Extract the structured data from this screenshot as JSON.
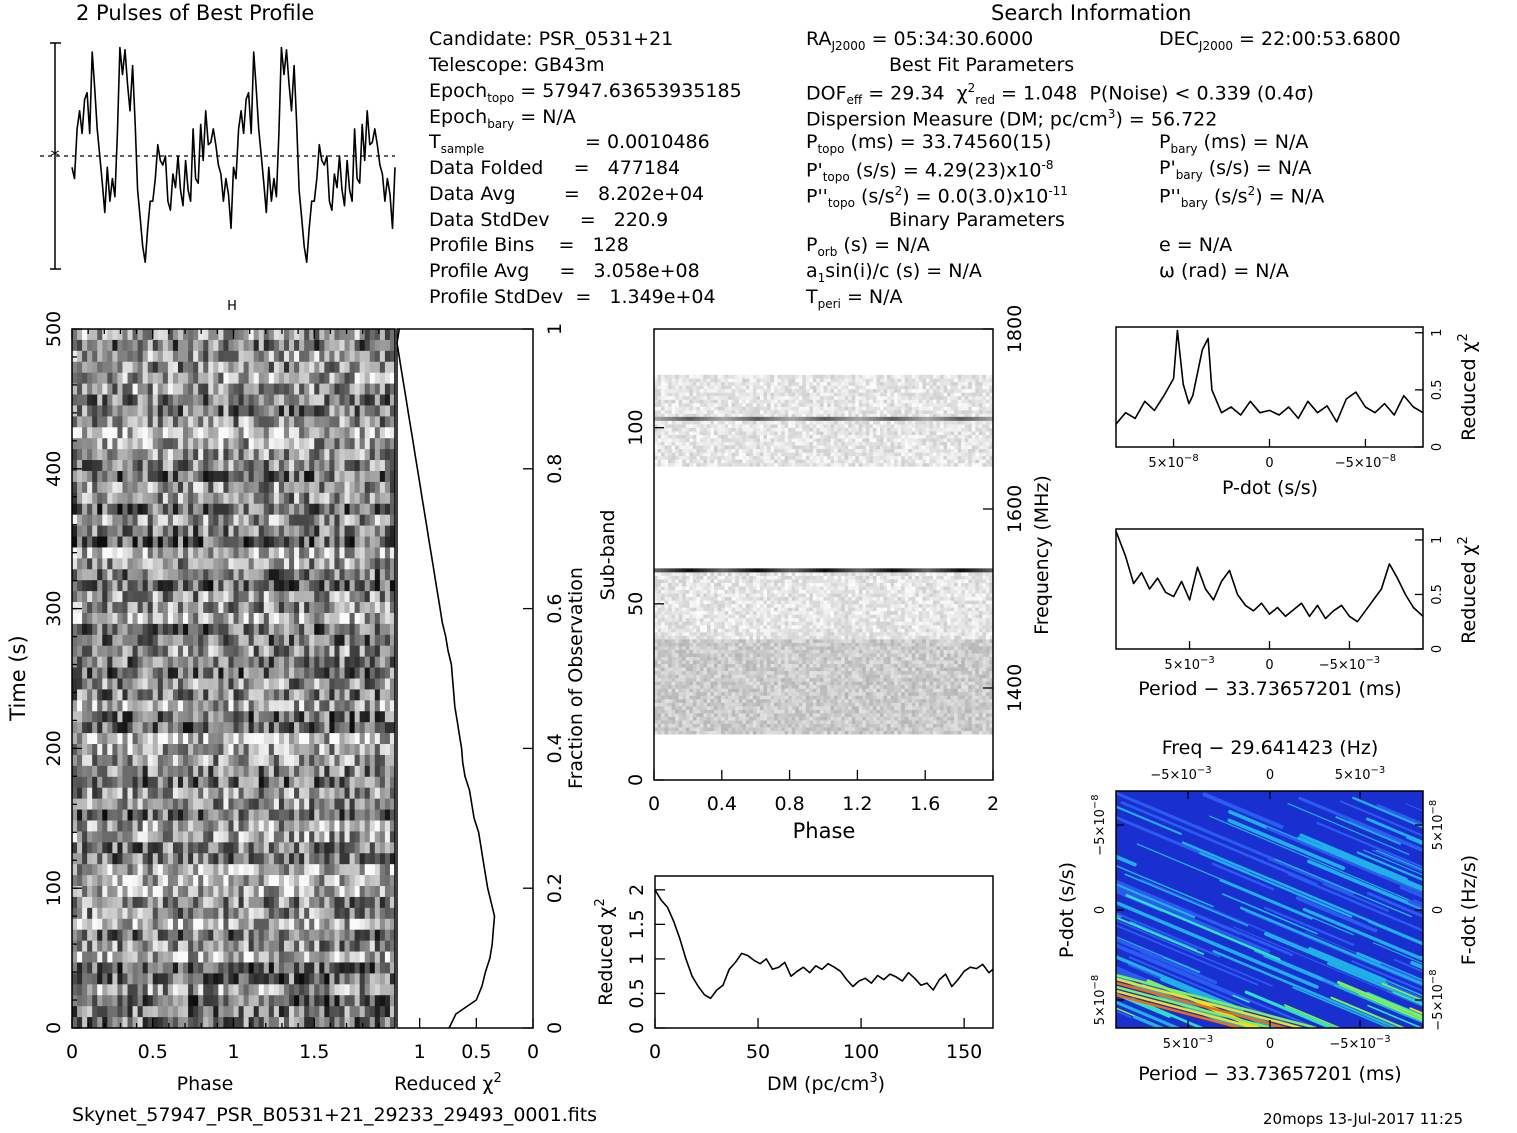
{
  "header": {
    "profile_title": "2 Pulses of Best Profile",
    "search_title": "Search Information",
    "candidate": "Candidate:  PSR_0531+21",
    "telescope": "Telescope:  GB43m",
    "epoch_topo": "Epoch",
    "epoch_topo_sub": "topo",
    "epoch_topo_val": "= 57947.63653935185",
    "epoch_bary": "Epoch",
    "epoch_bary_sub": "bary",
    "epoch_bary_val": "= N/A",
    "tsample": "T",
    "tsample_sub": "sample",
    "tsample_val": "=   0.0010486",
    "data_folded": "Data Folded     =   477184",
    "data_avg": "Data Avg        =   8.202e+04",
    "data_stddev": "Data StdDev     =   220.9",
    "profile_bins": "Profile Bins    =   128",
    "profile_avg": "Profile Avg     =   3.058e+08",
    "profile_stddev": "Profile StdDev  =   1.349e+04"
  },
  "search": {
    "ra": "RA",
    "ra_sub": "J2000",
    "ra_val": "= 05:34:30.6000",
    "dec": "DEC",
    "dec_sub": "J2000",
    "dec_val": "= 22:00:53.6800",
    "best_fit": "Best Fit Parameters",
    "dof": "DOF",
    "dof_sub": "eff",
    "dof_val": "= 29.34",
    "chi": "χ",
    "chi_sup": "2",
    "chi_sub": "red",
    "chi_val": "= 1.048",
    "pnoise": "P(Noise) < 0.339   (0.4σ)",
    "dm_line": "Dispersion Measure (DM; pc/cm",
    "dm_sup": "3",
    "dm_val": ") = 56.722",
    "ptopo": "P",
    "ptopo_sub": "topo",
    "ptopo_val": "(ms) =  33.74560(15)",
    "pbary": "P",
    "pbary_sub": "bary",
    "pbary_val": "(ms) = N/A",
    "pdtopo": "P'",
    "pdtopo_sub": "topo",
    "pdtopo_val": "(s/s) =  4.29(23)x10",
    "pdtopo_exp": "-8",
    "pdbary": "P'",
    "pdbary_sub": "bary",
    "pdbary_val": "(s/s) = N/A",
    "pddtopo": "P''",
    "pddtopo_sub": "topo",
    "pddtopo_val": "(s/s",
    "pddtopo_sup": "2",
    "pddtopo_val2": ") = 0.0(3.0)x10",
    "pddtopo_exp": "-11",
    "pddbary": "P''",
    "pddbary_sub": "bary",
    "pddbary_val": "(s/s",
    "pddbary_sup": "2",
    "pddbary_val2": ") = N/A",
    "binary": "Binary Parameters",
    "porb": "P",
    "porb_sub": "orb",
    "porb_val": "(s) = N/A",
    "ecc": "e = N/A",
    "a1": "a",
    "a1_sub": "1",
    "a1_val": "sin(i)/c (s) = N/A",
    "omega": "ω (rad) = N/A",
    "tperi": "T",
    "tperi_sub": "peri",
    "tperi_val": "= N/A"
  },
  "footer": {
    "filename": "Skynet_57947_PSR_B0531+21_29233_29493_0001.fits",
    "stamp": "20mops 13-Jul-2017 11:25"
  },
  "chart_data": [
    {
      "id": "pulse_profile",
      "type": "line",
      "title": "2 Pulses of Best Profile",
      "x": [
        0,
        0.0156,
        0.0313,
        0.0469,
        0.0625,
        0.0781,
        0.0938,
        0.1094,
        0.125,
        0.1406,
        0.1563,
        0.1719,
        0.1875,
        0.2031,
        0.2188,
        0.2344,
        0.25,
        0.2656,
        0.2813,
        0.2969,
        0.3125,
        0.3281,
        0.3438,
        0.3594,
        0.375,
        0.3906,
        0.4063,
        0.4219,
        0.4375,
        0.4531,
        0.4688,
        0.4844,
        0.5,
        0.5156,
        0.5313,
        0.5469,
        0.5625,
        0.5781,
        0.5938,
        0.6094,
        0.625,
        0.6406,
        0.6563,
        0.6719,
        0.6875,
        0.7031,
        0.7188,
        0.7344,
        0.75,
        0.7656,
        0.7813,
        0.7969,
        0.8125,
        0.8281,
        0.8438,
        0.8594,
        0.875,
        0.8906,
        0.9063,
        0.9219,
        0.9375,
        0.9531,
        0.9688,
        0.9844,
        1.0
      ],
      "values": [
        0.45,
        0.4,
        0.62,
        0.7,
        0.6,
        0.75,
        0.78,
        0.6,
        0.96,
        0.8,
        0.62,
        0.5,
        0.38,
        0.25,
        0.45,
        0.3,
        0.4,
        0.32,
        0.6,
        0.98,
        0.86,
        0.97,
        0.82,
        0.7,
        0.9,
        0.65,
        0.35,
        0.23,
        0.1,
        0.03,
        0.18,
        0.3,
        0.3,
        0.4,
        0.55,
        0.48,
        0.46,
        0.5,
        0.3,
        0.26,
        0.42,
        0.36,
        0.5,
        0.35,
        0.28,
        0.48,
        0.35,
        0.3,
        0.62,
        0.4,
        0.38,
        0.64,
        0.48,
        0.7,
        0.55,
        0.56,
        0.62,
        0.55,
        0.46,
        0.42,
        0.3,
        0.4,
        0.33,
        0.18,
        0.45
      ]
    },
    {
      "id": "time_phase",
      "type": "heatmap",
      "xlabel": "Phase",
      "ylabel": "Time (s)",
      "xlim": [
        0,
        2
      ],
      "ylim": [
        0,
        500
      ],
      "x_ticks": [
        "0",
        "0.5",
        "1",
        "1.5"
      ],
      "y_ticks": [
        "0",
        "100",
        "200",
        "300",
        "400",
        "500"
      ],
      "rows": 64,
      "cols": 64
    },
    {
      "id": "chi_vs_time",
      "type": "line",
      "xlabel": "Reduced χ",
      "xlabel_sup": "2",
      "ylabel": "Fraction of Observation",
      "x_ticks": [
        "1",
        "0.5",
        "0"
      ],
      "y_ticks": [
        "0",
        "0.2",
        "0.4",
        "0.6",
        "0.8",
        "1"
      ],
      "xlim": [
        1.2,
        0
      ],
      "ylim": [
        0,
        1
      ],
      "x": [
        0.74,
        0.68,
        0.5,
        0.45,
        0.42,
        0.38,
        0.36,
        0.35,
        0.34,
        0.37,
        0.4,
        0.42,
        0.44,
        0.46,
        0.48,
        0.52,
        0.54,
        0.56,
        0.6,
        0.62,
        0.63,
        0.65,
        0.67,
        0.69,
        0.7,
        0.71,
        0.72,
        0.75,
        0.77,
        0.8,
        0.82,
        0.84,
        0.86,
        0.88,
        0.9,
        0.92,
        0.94,
        0.96,
        0.98,
        1.0,
        1.02,
        1.04,
        1.06,
        1.08,
        1.1,
        1.12,
        1.14,
        1.16,
        1.18,
        1.2,
        1.18
      ],
      "y": [
        0.0,
        0.02,
        0.04,
        0.06,
        0.08,
        0.1,
        0.12,
        0.14,
        0.16,
        0.18,
        0.2,
        0.22,
        0.24,
        0.26,
        0.28,
        0.3,
        0.32,
        0.34,
        0.36,
        0.38,
        0.4,
        0.42,
        0.44,
        0.46,
        0.48,
        0.5,
        0.52,
        0.54,
        0.56,
        0.58,
        0.6,
        0.62,
        0.64,
        0.66,
        0.68,
        0.7,
        0.72,
        0.74,
        0.76,
        0.78,
        0.8,
        0.82,
        0.84,
        0.86,
        0.88,
        0.9,
        0.92,
        0.94,
        0.96,
        0.98,
        1.0
      ]
    },
    {
      "id": "subband_phase",
      "type": "heatmap",
      "xlabel": "Phase",
      "ylabel": "Sub-band",
      "ylabel_right": "Frequency (MHz)",
      "xlim": [
        0,
        2
      ],
      "ylim": [
        0,
        128
      ],
      "x_ticks": [
        "0",
        "0.4",
        "0.8",
        "1.2",
        "1.6",
        "2"
      ],
      "y_ticks": [
        "0",
        "50",
        "100"
      ],
      "y_right_ticks": [
        "1400",
        "1600",
        "1800"
      ],
      "bright_bands": [
        59.5,
        102.5
      ],
      "occupied_ranges": [
        [
          13,
          60
        ],
        [
          89,
          115
        ]
      ]
    },
    {
      "id": "chi_vs_dm",
      "type": "line",
      "xlabel": "DM (pc/cm",
      "xlabel_sup": "3",
      "xlabel_end": ")",
      "ylabel": "Reduced χ",
      "ylabel_sup": "2",
      "xlim": [
        0,
        164
      ],
      "ylim": [
        0,
        2.2
      ],
      "x_ticks": [
        "0",
        "50",
        "100",
        "150"
      ],
      "y_ticks": [
        "0",
        "0.5",
        "1",
        "1.5",
        "2"
      ],
      "x": [
        0,
        3,
        6,
        9,
        12,
        15,
        18,
        21,
        24,
        27,
        30,
        33,
        36,
        39,
        42,
        45,
        48,
        51,
        54,
        57,
        60,
        63,
        66,
        69,
        72,
        75,
        78,
        81,
        84,
        87,
        90,
        93,
        96,
        99,
        102,
        105,
        108,
        111,
        114,
        117,
        120,
        123,
        126,
        129,
        132,
        135,
        138,
        141,
        144,
        147,
        150,
        153,
        156,
        159,
        162,
        164
      ],
      "values": [
        2.0,
        1.85,
        1.75,
        1.55,
        1.3,
        1.0,
        0.75,
        0.6,
        0.48,
        0.43,
        0.55,
        0.62,
        0.85,
        0.95,
        1.08,
        1.05,
        0.98,
        0.93,
        1.0,
        0.85,
        0.88,
        0.95,
        0.75,
        0.82,
        0.88,
        0.8,
        0.9,
        0.85,
        0.93,
        0.88,
        0.82,
        0.7,
        0.6,
        0.68,
        0.72,
        0.65,
        0.76,
        0.7,
        0.78,
        0.74,
        0.68,
        0.8,
        0.72,
        0.62,
        0.65,
        0.55,
        0.7,
        0.78,
        0.6,
        0.7,
        0.82,
        0.88,
        0.86,
        0.92,
        0.8,
        0.85
      ]
    },
    {
      "id": "chi_vs_pdot",
      "type": "line",
      "xlabel": "P-dot (s/s)",
      "ylabel": "Reduced χ",
      "ylabel_sup": "2",
      "xlim": [
        8e-08,
        -8e-08
      ],
      "ylim": [
        0,
        1.05
      ],
      "x_ticks_mant": [
        "5×10",
        "0",
        "−5×10"
      ],
      "x_ticks_exp": [
        "−8",
        "",
        "−8"
      ],
      "y_ticks": [
        "0",
        "0.5",
        "1"
      ],
      "x": [
        8e-08,
        7.5e-08,
        7e-08,
        6.5e-08,
        6e-08,
        5.5e-08,
        5e-08,
        4.8e-08,
        4.5e-08,
        4.2e-08,
        4e-08,
        3.5e-08,
        3.2e-08,
        3e-08,
        2.5e-08,
        2e-08,
        1.5e-08,
        1e-08,
        5e-09,
        0,
        -5e-09,
        -1e-08,
        -1.5e-08,
        -2e-08,
        -2.5e-08,
        -3e-08,
        -3.5e-08,
        -4e-08,
        -4.5e-08,
        -5e-08,
        -5.5e-08,
        -6e-08,
        -6.5e-08,
        -7e-08,
        -7.5e-08,
        -8e-08
      ],
      "values": [
        0.2,
        0.3,
        0.25,
        0.4,
        0.32,
        0.45,
        0.6,
        1.02,
        0.55,
        0.38,
        0.45,
        0.85,
        0.95,
        0.5,
        0.3,
        0.35,
        0.28,
        0.4,
        0.3,
        0.32,
        0.28,
        0.35,
        0.25,
        0.4,
        0.3,
        0.36,
        0.22,
        0.42,
        0.48,
        0.35,
        0.3,
        0.38,
        0.28,
        0.45,
        0.35,
        0.3
      ]
    },
    {
      "id": "chi_vs_period",
      "type": "line",
      "xlabel": "Period − 33.73657201 (ms)",
      "ylabel": "Reduced χ",
      "ylabel_sup": "2",
      "xlim": [
        0.0096,
        -0.0096
      ],
      "ylim": [
        0,
        1.1
      ],
      "x_ticks_mant": [
        "5×10",
        "0",
        "−5×10"
      ],
      "x_ticks_exp": [
        "−3",
        "",
        "−3"
      ],
      "y_ticks": [
        "0",
        "0.5",
        "1"
      ],
      "x": [
        0.0096,
        0.009,
        0.0085,
        0.008,
        0.0075,
        0.007,
        0.0065,
        0.006,
        0.0055,
        0.005,
        0.0045,
        0.004,
        0.0035,
        0.003,
        0.0025,
        0.002,
        0.0015,
        0.001,
        0.0005,
        0,
        -0.0005,
        -0.001,
        -0.0015,
        -0.002,
        -0.0025,
        -0.003,
        -0.0035,
        -0.004,
        -0.0045,
        -0.005,
        -0.0055,
        -0.006,
        -0.0065,
        -0.007,
        -0.0075,
        -0.008,
        -0.0085,
        -0.009,
        -0.0096
      ],
      "values": [
        1.08,
        0.85,
        0.6,
        0.7,
        0.55,
        0.65,
        0.52,
        0.48,
        0.62,
        0.45,
        0.75,
        0.55,
        0.45,
        0.62,
        0.72,
        0.5,
        0.4,
        0.35,
        0.42,
        0.32,
        0.38,
        0.3,
        0.36,
        0.42,
        0.3,
        0.4,
        0.28,
        0.35,
        0.4,
        0.3,
        0.25,
        0.35,
        0.45,
        0.55,
        0.78,
        0.65,
        0.5,
        0.38,
        0.3
      ]
    },
    {
      "id": "pdot_period",
      "type": "heatmap",
      "title": "Freq − 29.641423 (Hz)",
      "xlabel": "Period − 33.73657201 (ms)",
      "ylabel": "P-dot (s/s)",
      "ylabel_right": "F-dot (Hz/s)",
      "x_ticks_mant": [
        "5×10",
        "0",
        "−5×10"
      ],
      "x_ticks_exp": [
        "−3",
        "",
        "−3"
      ],
      "top_ticks_mant": [
        "−5×10",
        "0",
        "5×10"
      ],
      "top_ticks_exp": [
        "−3",
        "",
        "−3"
      ],
      "y_ticks_mant": [
        "5×10",
        "0",
        "−5×10"
      ],
      "y_ticks_exp": [
        "−8",
        "",
        "−8"
      ],
      "y_right_ticks_mant": [
        "−5×10",
        "0",
        "5×10"
      ],
      "y_right_ticks_exp": [
        "−8",
        "",
        "−8"
      ],
      "colors": [
        "#1a2fd0",
        "#2b5cf0",
        "#1fb0e8",
        "#2de0c8",
        "#7ef060",
        "#f0e020",
        "#f06a10",
        "#e02b8a"
      ]
    }
  ]
}
